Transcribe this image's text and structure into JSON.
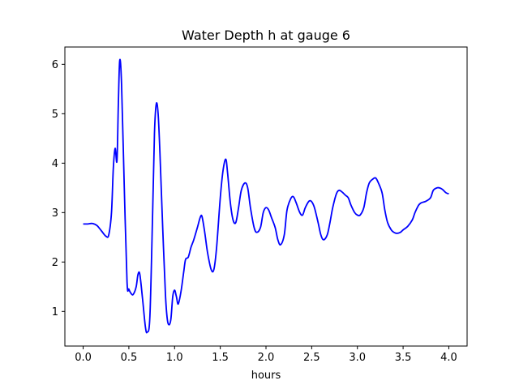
{
  "chart_data": {
    "type": "line",
    "title": "Water Depth h at gauge 6",
    "xlabel": "hours",
    "ylabel": "",
    "xlim": [
      -0.2,
      4.2
    ],
    "ylim": [
      0.3,
      6.35
    ],
    "xticks": [
      0.0,
      0.5,
      1.0,
      1.5,
      2.0,
      2.5,
      3.0,
      3.5,
      4.0
    ],
    "xtick_labels": [
      "0.0",
      "0.5",
      "1.0",
      "1.5",
      "2.0",
      "2.5",
      "3.0",
      "3.5",
      "4.0"
    ],
    "yticks": [
      1,
      2,
      3,
      4,
      5,
      6
    ],
    "ytick_labels": [
      "1",
      "2",
      "3",
      "4",
      "5",
      "6"
    ],
    "grid": false,
    "series": [
      {
        "color": "#0000ff",
        "x": [
          0.0,
          0.05,
          0.1,
          0.15,
          0.2,
          0.25,
          0.28,
          0.31,
          0.33,
          0.35,
          0.37,
          0.385,
          0.4,
          0.42,
          0.45,
          0.48,
          0.5,
          0.53,
          0.55,
          0.58,
          0.6,
          0.62,
          0.65,
          0.68,
          0.7,
          0.73,
          0.76,
          0.78,
          0.8,
          0.82,
          0.84,
          0.87,
          0.9,
          0.92,
          0.94,
          0.96,
          0.98,
          1.0,
          1.02,
          1.04,
          1.07,
          1.1,
          1.12,
          1.15,
          1.18,
          1.21,
          1.25,
          1.28,
          1.3,
          1.33,
          1.36,
          1.4,
          1.43,
          1.46,
          1.5,
          1.53,
          1.56,
          1.58,
          1.61,
          1.64,
          1.67,
          1.7,
          1.73,
          1.77,
          1.8,
          1.83,
          1.87,
          1.9,
          1.94,
          1.97,
          2.0,
          2.03,
          2.06,
          2.1,
          2.13,
          2.16,
          2.2,
          2.23,
          2.27,
          2.3,
          2.33,
          2.37,
          2.4,
          2.43,
          2.47,
          2.5,
          2.53,
          2.57,
          2.6,
          2.63,
          2.67,
          2.7,
          2.73,
          2.77,
          2.8,
          2.83,
          2.87,
          2.9,
          2.93,
          2.97,
          3.0,
          3.03,
          3.07,
          3.1,
          3.13,
          3.17,
          3.2,
          3.23,
          3.27,
          3.3,
          3.33,
          3.37,
          3.4,
          3.43,
          3.47,
          3.5,
          3.55,
          3.6,
          3.63,
          3.67,
          3.7,
          3.75,
          3.8,
          3.83,
          3.87,
          3.9,
          3.93,
          3.97,
          4.0
        ],
        "y": [
          2.77,
          2.77,
          2.78,
          2.74,
          2.63,
          2.52,
          2.55,
          3.0,
          3.9,
          4.3,
          4.05,
          5.2,
          6.08,
          5.6,
          3.5,
          1.6,
          1.45,
          1.35,
          1.35,
          1.5,
          1.75,
          1.75,
          1.25,
          0.7,
          0.58,
          0.9,
          3.0,
          4.6,
          5.2,
          5.0,
          4.2,
          2.7,
          1.35,
          0.85,
          0.73,
          0.85,
          1.3,
          1.43,
          1.3,
          1.15,
          1.4,
          1.8,
          2.05,
          2.1,
          2.3,
          2.45,
          2.7,
          2.9,
          2.92,
          2.6,
          2.2,
          1.85,
          1.85,
          2.3,
          3.3,
          3.85,
          4.08,
          3.8,
          3.2,
          2.85,
          2.8,
          3.1,
          3.45,
          3.6,
          3.5,
          3.1,
          2.7,
          2.6,
          2.7,
          3.0,
          3.1,
          3.05,
          2.9,
          2.7,
          2.45,
          2.35,
          2.55,
          3.05,
          3.28,
          3.32,
          3.2,
          3.0,
          2.95,
          3.1,
          3.23,
          3.22,
          3.1,
          2.8,
          2.55,
          2.45,
          2.55,
          2.8,
          3.1,
          3.38,
          3.45,
          3.42,
          3.35,
          3.3,
          3.15,
          3.0,
          2.95,
          2.95,
          3.1,
          3.4,
          3.6,
          3.68,
          3.7,
          3.6,
          3.4,
          3.05,
          2.8,
          2.65,
          2.6,
          2.58,
          2.6,
          2.65,
          2.72,
          2.85,
          3.0,
          3.15,
          3.2,
          3.23,
          3.3,
          3.45,
          3.5,
          3.5,
          3.47,
          3.4,
          3.38
        ]
      }
    ]
  }
}
